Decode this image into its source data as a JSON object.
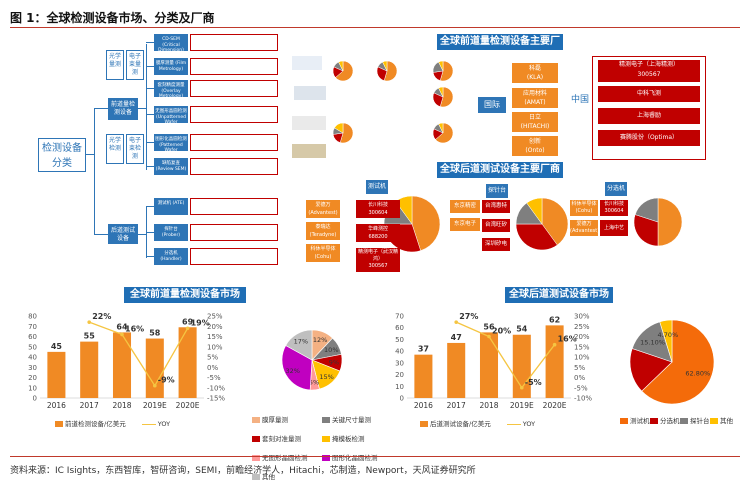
{
  "header": {
    "title": "图 1：全球检测设备市场、分类及厂商"
  },
  "source": "资料来源：IC Isights，东西智库，智研咨询，SEMI，前瞻经济学人，Hitachi，芯制造，Newport，天风证券研究所",
  "tree": {
    "root": "检测设备\n分类",
    "front": "前道量检测设备",
    "back": "后道测试设备",
    "front_children": [
      "光学量测",
      "电子束量测",
      "量测",
      "光学检测",
      "电子束检测"
    ],
    "front_items": [
      "CD-SEM (Critical Dimension)",
      "膜厚测量 (Film Metrology)",
      "套刻精度测量 (Overlay Metrology)",
      "无图形晶圆检测 (Unpatterned Wafer Inspection)",
      "图形化晶圆检测 (Patterned Wafer Inspection)",
      "缺陷复查 (Review SEM)"
    ],
    "back_items": [
      "测试机 (ATE)",
      "探针台 (Prober)",
      "分选机 (Handler)"
    ]
  },
  "vendors_front": {
    "title": "全球前道量检测设备主要厂",
    "intl_label": "国际",
    "cn_label": "中国",
    "intl": [
      "科磊\n(KLA)",
      "应用材料\n(AMAT)",
      "日立\n(HITACHI)",
      "创新\n(Onto)"
    ],
    "cn": [
      "精测电子（上海精测）\n300567",
      "中科飞测",
      "上海睿励",
      "赛腾股份（Optima）"
    ]
  },
  "vendors_back": {
    "title": "全球后道测试设备主要厂商",
    "tester": "测试机",
    "prober": "探针台",
    "handler": "分选机",
    "tester_intl": [
      "爱德万\n(Advantest)",
      "泰瑞达\n(Teradyne)",
      "科休半导体\n(Cohu)"
    ],
    "tester_cn": [
      "长川科技\n300604",
      "华峰测控\n688200",
      "精测电子（武汉精鸿）\n300567"
    ],
    "prober_intl": [
      "东京精密",
      "东京电子"
    ],
    "prober_cn": [
      "台湾惠特",
      "台湾旺矽",
      "深圳矽电"
    ],
    "handler_intl": [
      "科休半导体\n(Cohu)",
      "爱德万\n(Advantest)"
    ],
    "handler_cn": [
      "长川科技\n300604",
      "上海中艺"
    ]
  },
  "chart_front": {
    "title": "全球前道量检测设备市场",
    "chart_data": {
      "type": "bar",
      "categories": [
        "2016",
        "2017",
        "2018",
        "2019E",
        "2020E"
      ],
      "series": [
        {
          "name": "前道检测设备/亿美元",
          "values": [
            45,
            55,
            64,
            58,
            69
          ]
        },
        {
          "name": "YOY",
          "values": [
            null,
            22,
            16,
            -9,
            19
          ]
        }
      ],
      "value_labels": [
        "45",
        "55",
        "64",
        "58",
        "69"
      ],
      "yoy_labels": [
        "",
        "22%",
        "16%",
        "-9%",
        "19%"
      ],
      "ylim": [
        0,
        80
      ],
      "y2lim": [
        -15,
        25
      ],
      "yticks": [
        "0",
        "10",
        "20",
        "30",
        "40",
        "50",
        "60",
        "70",
        "80"
      ],
      "y2ticks": [
        "-15%",
        "-10%",
        "-5%",
        "0%",
        "5%",
        "10%",
        "15%",
        "20%",
        "25%"
      ]
    }
  },
  "pie_front": {
    "chart_data": {
      "type": "pie",
      "labels": [
        "膜厚量测",
        "关键尺寸量测",
        "套刻对准量测",
        "掩模板检测",
        "无图形晶圆检测",
        "图形化晶圆检测",
        "其他"
      ],
      "values": [
        12,
        10,
        9,
        15,
        5,
        32,
        17
      ],
      "value_labels": [
        "12%",
        "10%",
        "9%",
        "15%",
        "5%",
        "32%",
        "17%"
      ],
      "colors": [
        "#f4b183",
        "#7f7f7f",
        "#c00000",
        "#ffc000",
        "#ff9999",
        "#c000c0",
        "#bfbfbf"
      ]
    }
  },
  "chart_back": {
    "title": "全球后道测试设备市场",
    "chart_data": {
      "type": "bar",
      "categories": [
        "2016",
        "2017",
        "2018",
        "2019E",
        "2020E"
      ],
      "series": [
        {
          "name": "后道测试设备/亿美元",
          "values": [
            37,
            47,
            56,
            54,
            62
          ]
        },
        {
          "name": "YOY",
          "values": [
            null,
            27,
            20,
            -5,
            16
          ]
        }
      ],
      "value_labels": [
        "37",
        "47",
        "56",
        "54",
        "62"
      ],
      "yoy_labels": [
        "",
        "27%",
        "20%",
        "-5%",
        "16%"
      ],
      "ylim": [
        0,
        70
      ],
      "y2lim": [
        -10,
        30
      ],
      "yticks": [
        "0",
        "10",
        "20",
        "30",
        "40",
        "50",
        "60",
        "70"
      ],
      "y2ticks": [
        "-10%",
        "-5%",
        "0%",
        "5%",
        "10%",
        "15%",
        "20%",
        "25%",
        "30%"
      ]
    }
  },
  "pie_back": {
    "chart_data": {
      "type": "pie",
      "labels": [
        "测试机",
        "分选机",
        "探针台",
        "其他"
      ],
      "values": [
        62.8,
        17.4,
        15.1,
        4.7
      ],
      "value_labels": [
        "62.80%",
        "",
        "15.10%",
        "4.70%"
      ],
      "colors": [
        "#f46b0a",
        "#c00000",
        "#7f7f7f",
        "#ffc000"
      ]
    }
  },
  "legend_yoy": "YOY"
}
